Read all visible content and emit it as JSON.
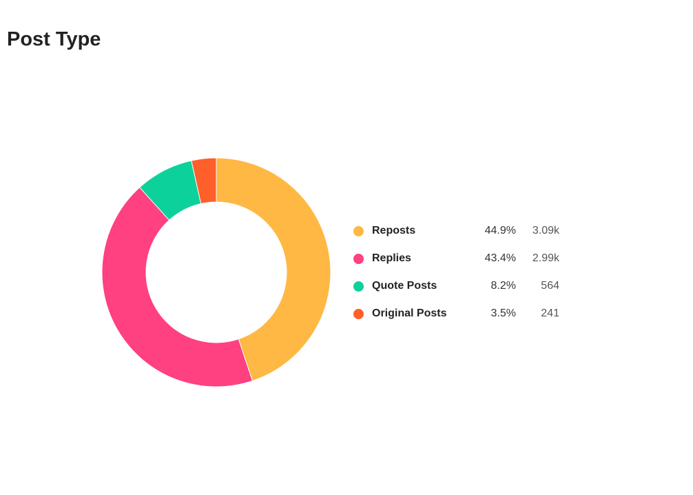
{
  "title": "Post Type",
  "chart_data": {
    "type": "pie",
    "variant": "donut",
    "title": "Post Type",
    "slices": [
      {
        "name": "Reposts",
        "percent": 44.9,
        "count_label": "3.09k",
        "value": 3090,
        "color": "#ffb844"
      },
      {
        "name": "Replies",
        "percent": 43.4,
        "count_label": "2.99k",
        "value": 2990,
        "color": "#ff4081"
      },
      {
        "name": "Quote Posts",
        "percent": 8.2,
        "count_label": "564",
        "value": 564,
        "color": "#0dd19a"
      },
      {
        "name": "Original Posts",
        "percent": 3.5,
        "count_label": "241",
        "value": 241,
        "color": "#ff5f2a"
      }
    ],
    "legend_placement": "right"
  }
}
